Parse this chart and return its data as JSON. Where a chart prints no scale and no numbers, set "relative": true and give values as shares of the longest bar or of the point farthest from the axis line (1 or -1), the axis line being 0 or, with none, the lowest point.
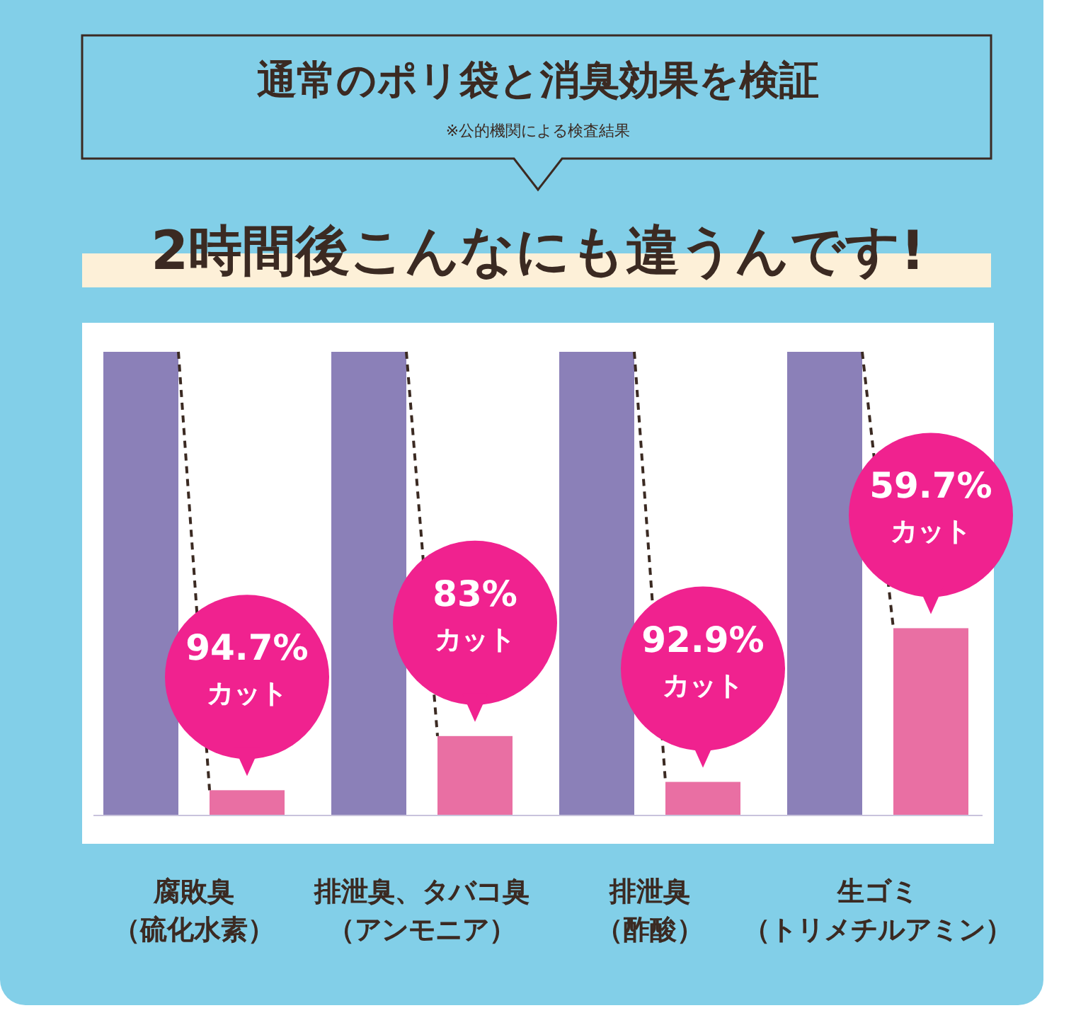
{
  "chart_data": {
    "type": "bar",
    "title": "通常のポリ袋と消臭効果を検証",
    "subtitle": "2時間後こんなにも違うんです!",
    "annotations": [
      "※公的機関による検査結果",
      "94.7% カット",
      "83% カット",
      "92.9% カット",
      "59.7% カット"
    ],
    "categories": [
      "腐敗臭（硫化水素）",
      "排泄臭、タバコ臭（アンモニア）",
      "排泄臭（酢酸）",
      "生ゴミ（トリメチルアミン）"
    ],
    "relative": true,
    "series": [
      {
        "color": "#8b80b8",
        "values": [
          1,
          1,
          1,
          1
        ]
      },
      {
        "color": "#e96fa3",
        "values": [
          0.053,
          0.17,
          0.071,
          0.403
        ]
      }
    ]
  }
}
